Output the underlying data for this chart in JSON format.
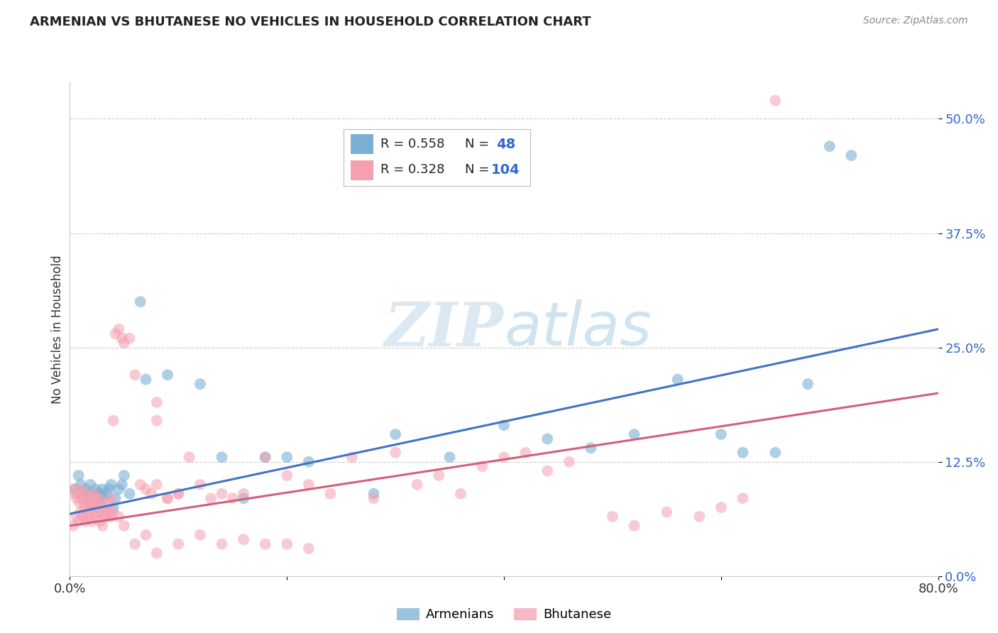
{
  "title": "ARMENIAN VS BHUTANESE NO VEHICLES IN HOUSEHOLD CORRELATION CHART",
  "source": "Source: ZipAtlas.com",
  "ylabel": "No Vehicles in Household",
  "armenian_color": "#7bafd4",
  "bhutanese_color": "#f4a0b0",
  "line_armenian": "#4472c4",
  "line_bhutanese": "#d45f7a",
  "background": "#ffffff",
  "xlim": [
    0.0,
    0.8
  ],
  "ylim": [
    0.0,
    0.54
  ],
  "ytick_vals": [
    0.0,
    0.125,
    0.25,
    0.375,
    0.5
  ],
  "ytick_labels": [
    "0.0%",
    "12.5%",
    "25.0%",
    "37.5%",
    "50.0%"
  ],
  "xtick_vals": [
    0.0,
    0.2,
    0.4,
    0.6,
    0.8
  ],
  "xtick_labels": [
    "0.0%",
    "",
    "",
    "",
    "80.0%"
  ],
  "arm_line_start": 0.068,
  "arm_line_end": 0.27,
  "bhu_line_start": 0.055,
  "bhu_line_end": 0.2,
  "armenian_x": [
    0.005,
    0.008,
    0.01,
    0.012,
    0.015,
    0.016,
    0.018,
    0.019,
    0.02,
    0.022,
    0.024,
    0.025,
    0.026,
    0.028,
    0.03,
    0.032,
    0.034,
    0.036,
    0.038,
    0.04,
    0.042,
    0.045,
    0.048,
    0.05,
    0.055,
    0.065,
    0.07,
    0.09,
    0.12,
    0.14,
    0.16,
    0.18,
    0.2,
    0.22,
    0.28,
    0.3,
    0.35,
    0.4,
    0.44,
    0.48,
    0.52,
    0.56,
    0.6,
    0.62,
    0.65,
    0.68,
    0.7,
    0.72
  ],
  "armenian_y": [
    0.095,
    0.11,
    0.1,
    0.09,
    0.095,
    0.085,
    0.09,
    0.1,
    0.09,
    0.085,
    0.095,
    0.09,
    0.085,
    0.09,
    0.095,
    0.085,
    0.09,
    0.095,
    0.1,
    0.075,
    0.085,
    0.095,
    0.1,
    0.11,
    0.09,
    0.3,
    0.215,
    0.22,
    0.21,
    0.13,
    0.085,
    0.13,
    0.13,
    0.125,
    0.09,
    0.155,
    0.13,
    0.165,
    0.15,
    0.14,
    0.155,
    0.215,
    0.155,
    0.135,
    0.135,
    0.21,
    0.47,
    0.46
  ],
  "bhutanese_x": [
    0.003,
    0.005,
    0.006,
    0.008,
    0.009,
    0.01,
    0.011,
    0.012,
    0.013,
    0.014,
    0.015,
    0.016,
    0.017,
    0.018,
    0.019,
    0.02,
    0.021,
    0.022,
    0.023,
    0.024,
    0.025,
    0.026,
    0.027,
    0.028,
    0.03,
    0.032,
    0.034,
    0.036,
    0.038,
    0.04,
    0.042,
    0.045,
    0.048,
    0.05,
    0.055,
    0.06,
    0.065,
    0.07,
    0.075,
    0.08,
    0.09,
    0.1,
    0.11,
    0.12,
    0.13,
    0.14,
    0.15,
    0.16,
    0.18,
    0.2,
    0.22,
    0.24,
    0.26,
    0.28,
    0.3,
    0.32,
    0.34,
    0.36,
    0.38,
    0.4,
    0.42,
    0.44,
    0.46,
    0.5,
    0.52,
    0.55,
    0.58,
    0.6,
    0.62,
    0.65,
    0.08,
    0.08,
    0.09,
    0.1,
    0.003,
    0.006,
    0.008,
    0.01,
    0.012,
    0.014,
    0.016,
    0.018,
    0.02,
    0.022,
    0.024,
    0.026,
    0.028,
    0.03,
    0.032,
    0.035,
    0.038,
    0.04,
    0.045,
    0.05,
    0.06,
    0.07,
    0.08,
    0.1,
    0.12,
    0.14,
    0.16,
    0.18,
    0.2,
    0.22
  ],
  "bhutanese_y": [
    0.095,
    0.09,
    0.085,
    0.09,
    0.08,
    0.095,
    0.085,
    0.09,
    0.08,
    0.075,
    0.085,
    0.09,
    0.08,
    0.085,
    0.075,
    0.08,
    0.085,
    0.09,
    0.08,
    0.085,
    0.075,
    0.08,
    0.085,
    0.075,
    0.07,
    0.075,
    0.065,
    0.08,
    0.085,
    0.17,
    0.265,
    0.27,
    0.26,
    0.255,
    0.26,
    0.22,
    0.1,
    0.095,
    0.09,
    0.1,
    0.085,
    0.09,
    0.13,
    0.1,
    0.085,
    0.09,
    0.085,
    0.09,
    0.13,
    0.11,
    0.1,
    0.09,
    0.13,
    0.085,
    0.135,
    0.1,
    0.11,
    0.09,
    0.12,
    0.13,
    0.135,
    0.115,
    0.125,
    0.065,
    0.055,
    0.07,
    0.065,
    0.075,
    0.085,
    0.52,
    0.17,
    0.19,
    0.085,
    0.09,
    0.055,
    0.065,
    0.06,
    0.07,
    0.065,
    0.06,
    0.065,
    0.07,
    0.06,
    0.065,
    0.065,
    0.07,
    0.06,
    0.055,
    0.065,
    0.07,
    0.065,
    0.07,
    0.065,
    0.055,
    0.035,
    0.045,
    0.025,
    0.035,
    0.045,
    0.035,
    0.04,
    0.035,
    0.035,
    0.03
  ]
}
